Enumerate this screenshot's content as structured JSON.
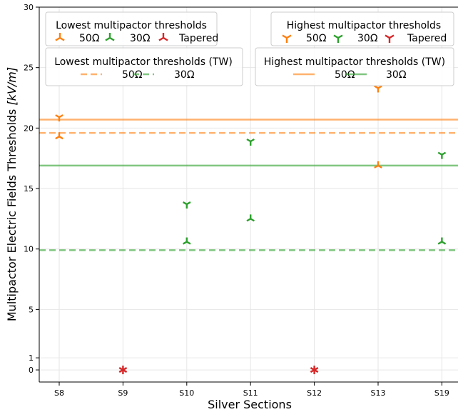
{
  "chart_data": {
    "type": "scatter",
    "xlabel": "Silver Sections",
    "ylabel_main": "Multipactor Electric Fields Thresholds ",
    "ylabel_unit": "[kV/m]",
    "categories": [
      "S8",
      "S9",
      "S10",
      "S11",
      "S12",
      "S13",
      "S19"
    ],
    "ylim": [
      -1,
      30
    ],
    "yticks": [
      0,
      1,
      5,
      10,
      15,
      20,
      25,
      30
    ],
    "grid": true,
    "colors": {
      "orange": "#ff7f0e",
      "green": "#2ca02c",
      "red": "#d62728"
    },
    "series": [
      {
        "group": "lowest",
        "name": "50Ω",
        "color": "#ff7f0e",
        "marker": "tri_up",
        "points": [
          {
            "x": "S8",
            "y": 19.3
          },
          {
            "x": "S13",
            "y": 16.9
          }
        ]
      },
      {
        "group": "lowest",
        "name": "30Ω",
        "color": "#2ca02c",
        "marker": "tri_up",
        "points": [
          {
            "x": "S10",
            "y": 10.6
          },
          {
            "x": "S11",
            "y": 12.5
          },
          {
            "x": "S19",
            "y": 10.6
          }
        ]
      },
      {
        "group": "lowest",
        "name": "Tapered",
        "color": "#d62728",
        "marker": "star",
        "points": [
          {
            "x": "S9",
            "y": 0
          },
          {
            "x": "S12",
            "y": 0
          }
        ]
      },
      {
        "group": "highest",
        "name": "50Ω",
        "color": "#ff7f0e",
        "marker": "tri_down",
        "points": [
          {
            "x": "S8",
            "y": 20.9
          },
          {
            "x": "S13",
            "y": 23.3
          }
        ]
      },
      {
        "group": "highest",
        "name": "30Ω",
        "color": "#2ca02c",
        "marker": "tri_down",
        "points": [
          {
            "x": "S10",
            "y": 13.7
          },
          {
            "x": "S11",
            "y": 18.9
          },
          {
            "x": "S19",
            "y": 17.8
          }
        ]
      }
    ],
    "hlines": [
      {
        "group": "lowest_tw",
        "name": "50Ω",
        "y": 19.6,
        "color": "#ff7f0e",
        "dashed": true
      },
      {
        "group": "lowest_tw",
        "name": "30Ω",
        "y": 9.9,
        "color": "#2ca02c",
        "dashed": true
      },
      {
        "group": "highest_tw",
        "name": "50Ω",
        "y": 20.7,
        "color": "#ff7f0e",
        "dashed": false
      },
      {
        "group": "highest_tw",
        "name": "30Ω",
        "y": 16.9,
        "color": "#2ca02c",
        "dashed": false
      }
    ],
    "legends": {
      "lowest": {
        "title": "Lowest multipactor thresholds",
        "placement": "top-left",
        "items": [
          {
            "label": "50Ω",
            "color": "#ff7f0e",
            "marker": "tri_up"
          },
          {
            "label": "30Ω",
            "color": "#2ca02c",
            "marker": "tri_up"
          },
          {
            "label": "Tapered",
            "color": "#d62728",
            "marker": "tri_up"
          }
        ]
      },
      "lowest_tw": {
        "title": "Lowest multipactor thresholds (TW)",
        "placement": "top-left",
        "items": [
          {
            "label": "50Ω",
            "color": "#ff7f0e",
            "dashed": true
          },
          {
            "label": "30Ω",
            "color": "#2ca02c",
            "dashed": true
          }
        ]
      },
      "highest": {
        "title": "Highest multipactor thresholds",
        "placement": "top-right",
        "items": [
          {
            "label": "50Ω",
            "color": "#ff7f0e",
            "marker": "tri_down"
          },
          {
            "label": "30Ω",
            "color": "#2ca02c",
            "marker": "tri_down"
          },
          {
            "label": "Tapered",
            "color": "#d62728",
            "marker": "tri_down"
          }
        ]
      },
      "highest_tw": {
        "title": "Highest multipactor thresholds (TW)",
        "placement": "top-right",
        "items": [
          {
            "label": "50Ω",
            "color": "#ff7f0e",
            "dashed": false
          },
          {
            "label": "30Ω",
            "color": "#2ca02c",
            "dashed": false
          }
        ]
      }
    }
  }
}
